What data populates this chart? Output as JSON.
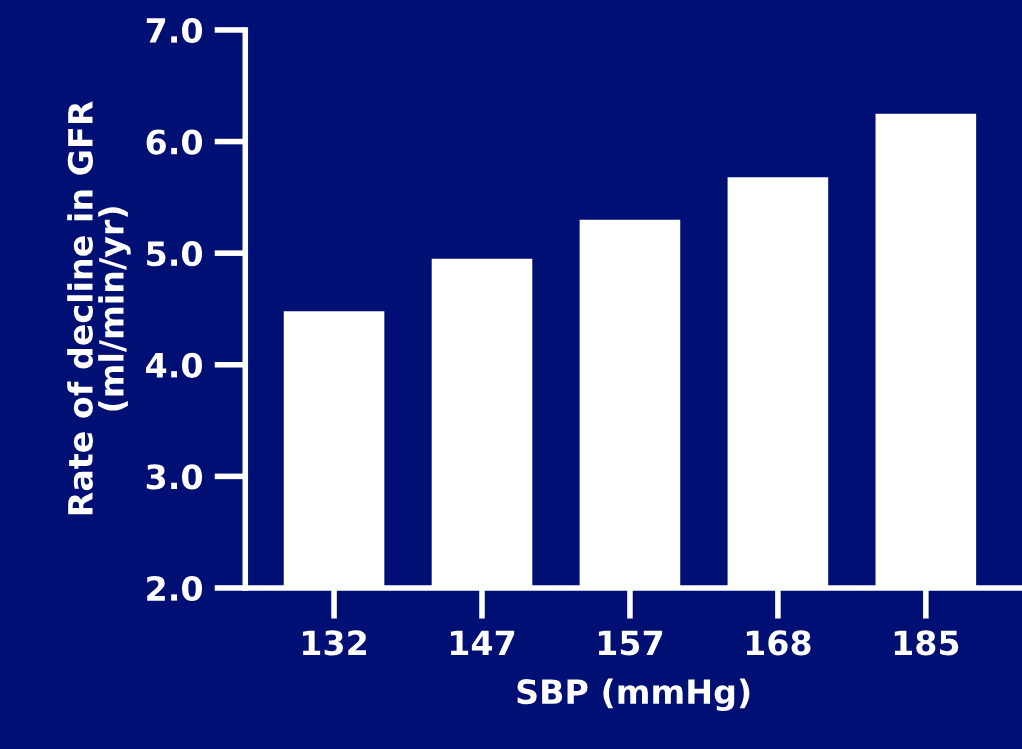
{
  "chart_data": {
    "type": "bar",
    "xlabel": "SBP (mmHg)",
    "ylabel": "Rate of decline in GFR\n(ml/min/yr)",
    "categories": [
      "132",
      "147",
      "157",
      "168",
      "185"
    ],
    "values": [
      4.48,
      4.95,
      5.3,
      5.68,
      6.25
    ],
    "color": "#ffffff",
    "ylim": [
      2.0,
      7.0
    ],
    "yticks": [
      {
        "value": 2.0,
        "label": "2.0"
      },
      {
        "value": 3.0,
        "label": "3.0"
      },
      {
        "value": 4.0,
        "label": "4.0"
      },
      {
        "value": 5.0,
        "label": "5.0"
      },
      {
        "value": 6.0,
        "label": "6.0"
      },
      {
        "value": 7.0,
        "label": "7.0"
      }
    ],
    "grid": false,
    "legend": false
  }
}
